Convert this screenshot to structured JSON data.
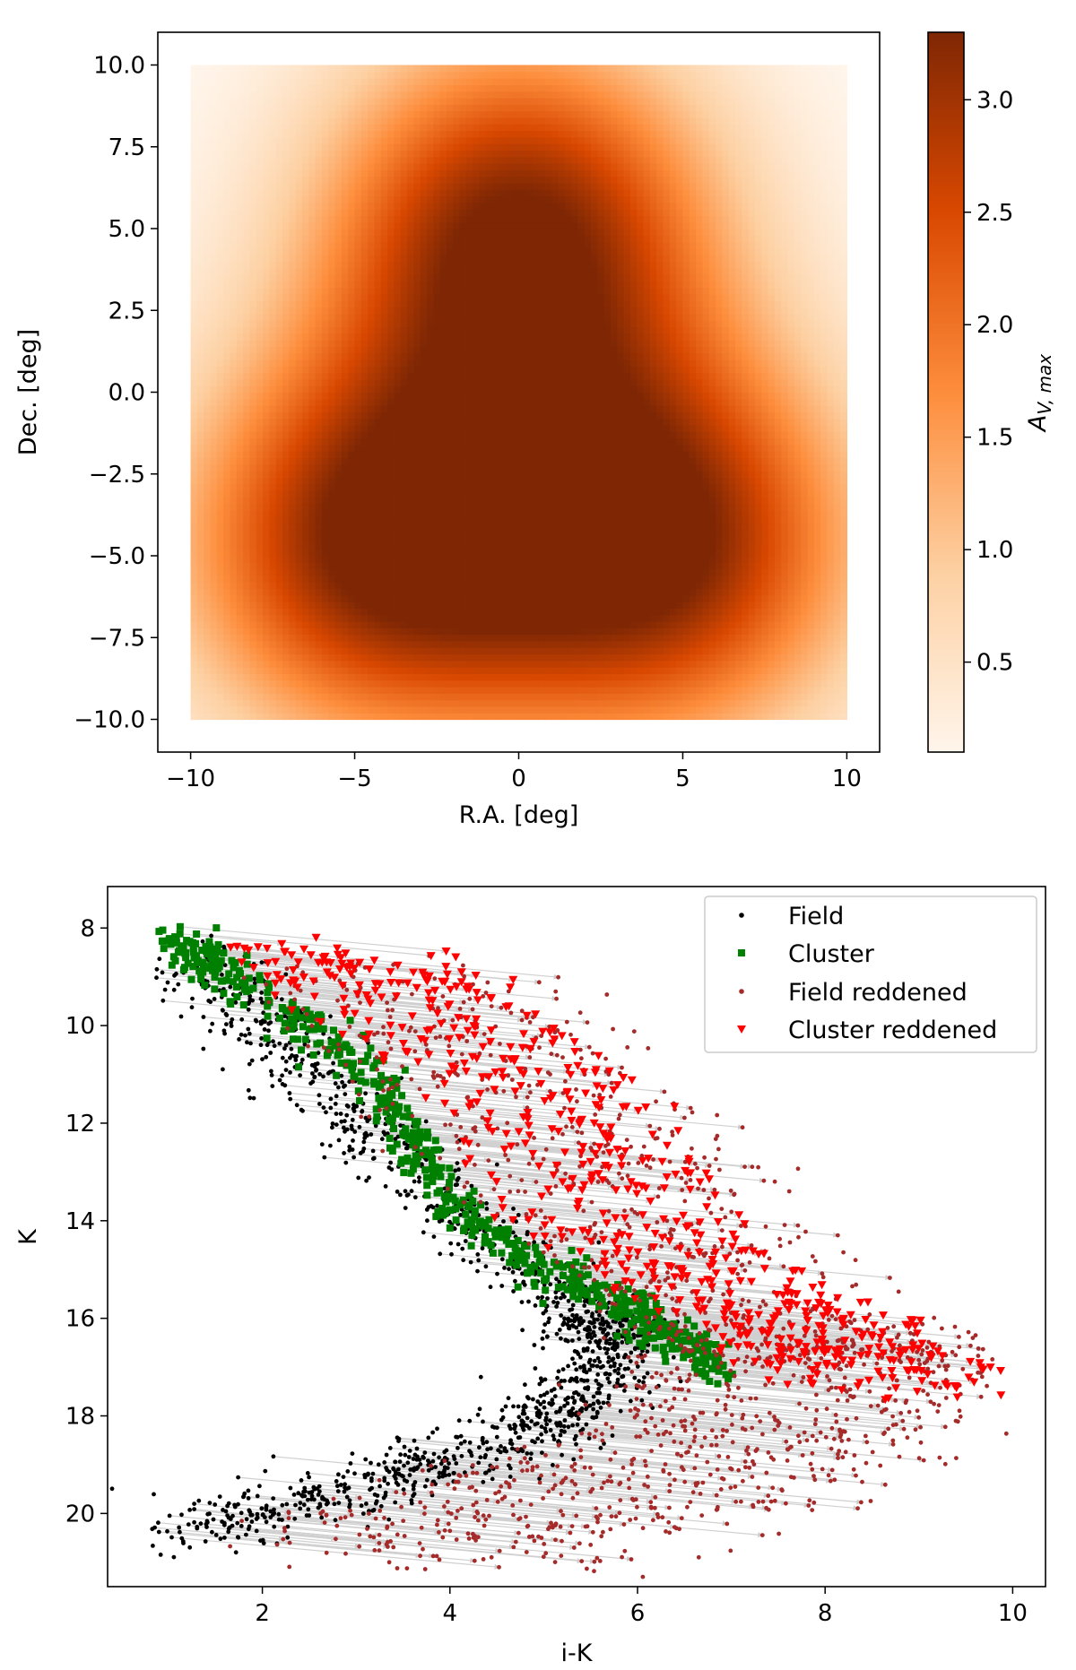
{
  "chart_data": [
    {
      "type": "heatmap",
      "title": "",
      "xlabel": "R.A. [deg]",
      "ylabel": "Dec. [deg]",
      "xlim": [
        -11,
        11
      ],
      "ylim": [
        -11,
        11
      ],
      "data_extent": {
        "x": [
          -10,
          10
        ],
        "y": [
          -10,
          10
        ]
      },
      "xticks": [
        -10,
        -5,
        0,
        5,
        10
      ],
      "xtick_labels": [
        "−10",
        "−5",
        "0",
        "5",
        "10"
      ],
      "yticks": [
        10,
        7.5,
        5,
        2.5,
        0,
        -2.5,
        -5,
        -7.5,
        -10
      ],
      "ytick_labels": [
        "10.0",
        "7.5",
        "5.0",
        "2.5",
        "0.0",
        "−2.5",
        "−5.0",
        "−7.5",
        "−10.0"
      ],
      "peaks": [
        {
          "ra": 0,
          "dec": 4.8,
          "av": 3.3
        },
        {
          "ra": -4.2,
          "dec": -4.6,
          "av": 3.3
        },
        {
          "ra": 4.2,
          "dec": -4.6,
          "av": 3.3
        }
      ],
      "colorbar": {
        "label": "A_{V,max}",
        "label_main": "A",
        "label_sub": "V, max",
        "range": [
          0.1,
          3.3
        ],
        "ticks": [
          0.5,
          1.0,
          1.5,
          2.0,
          2.5,
          3.0
        ],
        "tick_labels": [
          "0.5",
          "1.0",
          "1.5",
          "2.0",
          "2.5",
          "3.0"
        ],
        "colormap": "Oranges",
        "colors": [
          "#fff5eb",
          "#fdd0a2",
          "#fd8d3c",
          "#d94801",
          "#7f2704"
        ]
      }
    },
    {
      "type": "scatter",
      "title": "",
      "xlabel": "i-K",
      "ylabel": "K",
      "xlim": [
        0.35,
        10.35
      ],
      "ylim": [
        21.5,
        7.15
      ],
      "y_inverted": true,
      "xticks": [
        2,
        4,
        6,
        8,
        10
      ],
      "xtick_labels": [
        "2",
        "4",
        "6",
        "8",
        "10"
      ],
      "yticks": [
        8,
        10,
        12,
        14,
        16,
        18,
        20
      ],
      "ytick_labels": [
        "8",
        "10",
        "12",
        "14",
        "16",
        "18",
        "20"
      ],
      "legend_position": "top-right",
      "series": [
        {
          "name": "Field",
          "color": "#000000",
          "marker": "circle"
        },
        {
          "name": "Cluster",
          "color": "#008000",
          "marker": "square"
        },
        {
          "name": "Field reddened",
          "color": "#a52a2a",
          "marker": "circle"
        },
        {
          "name": "Cluster reddened",
          "color": "#ff0000",
          "marker": "triangle-down"
        }
      ],
      "field_sequence": [
        [
          1.0,
          20.4
        ],
        [
          2.0,
          19.9
        ],
        [
          3.0,
          19.5
        ],
        [
          4.0,
          19.0
        ],
        [
          5.0,
          18.2
        ],
        [
          5.5,
          17.4
        ],
        [
          5.8,
          16.3
        ],
        [
          5.4,
          16.0
        ],
        [
          4.3,
          14.0
        ],
        [
          3.2,
          12.2
        ],
        [
          2.2,
          10.4
        ],
        [
          1.2,
          8.6
        ]
      ],
      "cluster_sequence": [
        [
          1.0,
          8.2
        ],
        [
          1.5,
          8.8
        ],
        [
          2.5,
          10.1
        ],
        [
          3.2,
          11.0
        ],
        [
          3.7,
          12.8
        ],
        [
          4.2,
          14.0
        ],
        [
          5.0,
          15.0
        ],
        [
          5.8,
          15.7
        ],
        [
          6.3,
          16.3
        ],
        [
          6.9,
          17.0
        ]
      ],
      "reddening_shift_dx": [
        0.5,
        4.0
      ],
      "reddening_shift_dy": [
        0.1,
        0.7
      ]
    }
  ]
}
